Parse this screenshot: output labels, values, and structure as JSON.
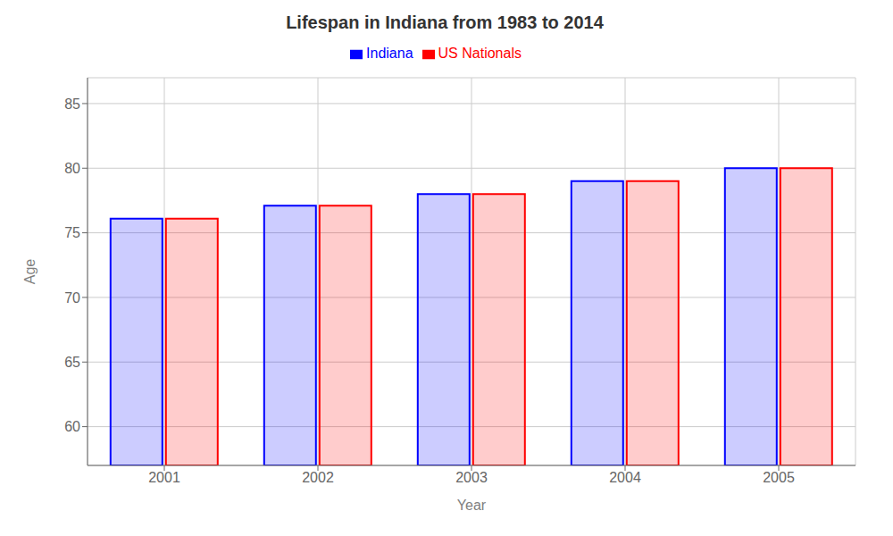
{
  "chart_data": {
    "type": "bar",
    "title": "Lifespan in Indiana from 1983 to 2014",
    "xlabel": "Year",
    "ylabel": "Age",
    "categories": [
      "2001",
      "2002",
      "2003",
      "2004",
      "2005"
    ],
    "series": [
      {
        "name": "Indiana",
        "color": "#0000ff",
        "values": [
          76.1,
          77.1,
          78.0,
          79.0,
          80.0
        ]
      },
      {
        "name": "US Nationals",
        "color": "#ff0000",
        "values": [
          76.1,
          77.1,
          78.0,
          79.0,
          80.0
        ]
      }
    ],
    "ylim": [
      57,
      87
    ],
    "yticks": [
      60,
      65,
      70,
      75,
      80,
      85
    ],
    "grid": true,
    "legend": "top"
  }
}
